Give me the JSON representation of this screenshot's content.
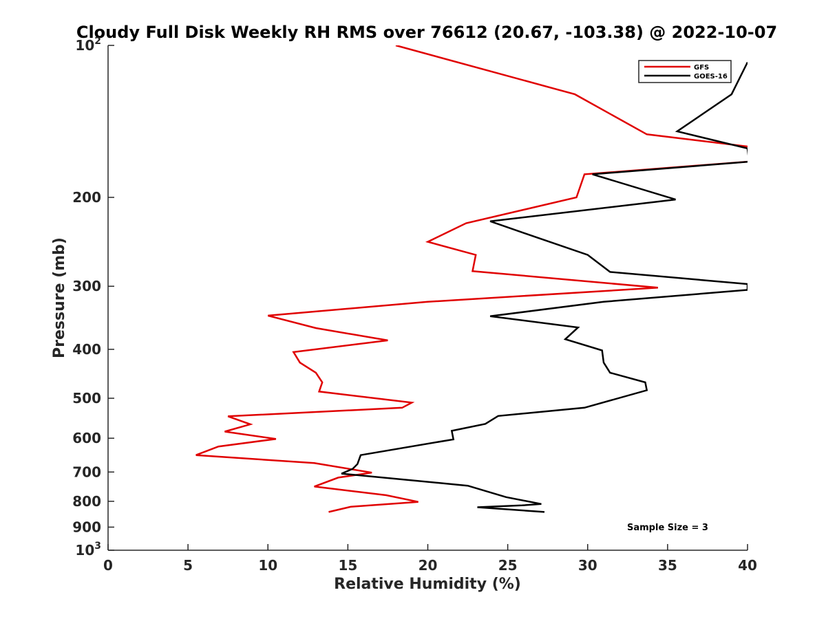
{
  "chart_data": {
    "type": "line",
    "title": "Cloudy Full Disk Weekly RH RMS over 76612 (20.67, -103.38) @ 2022-10-07",
    "xlabel": "Relative Humidity (%)",
    "ylabel": "Pressure (mb)",
    "xlim": [
      0,
      40
    ],
    "ylim": [
      100,
      1000
    ],
    "yscale": "log",
    "y_reversed": true,
    "xticks": [
      "0",
      "5",
      "10",
      "15",
      "20",
      "25",
      "30",
      "35",
      "40"
    ],
    "yticks": [
      {
        "value": 100,
        "label": "10",
        "sup": "2"
      },
      {
        "value": 200,
        "label": "200",
        "sup": ""
      },
      {
        "value": 300,
        "label": "300",
        "sup": ""
      },
      {
        "value": 400,
        "label": "400",
        "sup": ""
      },
      {
        "value": 500,
        "label": "500",
        "sup": ""
      },
      {
        "value": 600,
        "label": "600",
        "sup": ""
      },
      {
        "value": 700,
        "label": "700",
        "sup": ""
      },
      {
        "value": 800,
        "label": "800",
        "sup": ""
      },
      {
        "value": 900,
        "label": "900",
        "sup": ""
      },
      {
        "value": 1000,
        "label": "10",
        "sup": "3"
      }
    ],
    "legend_position": "top-right",
    "series": [
      {
        "name": "GFS",
        "color": "#e00000",
        "points": [
          [
            18.0,
            100
          ],
          [
            29.2,
            125
          ],
          [
            33.7,
            150
          ],
          [
            41.0,
            160
          ],
          [
            40.0,
            170
          ],
          [
            29.8,
            180
          ],
          [
            29.3,
            200
          ],
          [
            22.4,
            225
          ],
          [
            20.0,
            245
          ],
          [
            23.0,
            260
          ],
          [
            22.8,
            280
          ],
          [
            34.4,
            302
          ],
          [
            20.0,
            322
          ],
          [
            10.0,
            343
          ],
          [
            13.0,
            363
          ],
          [
            17.5,
            384
          ],
          [
            11.6,
            405
          ],
          [
            12.0,
            425
          ],
          [
            13.0,
            445
          ],
          [
            13.4,
            465
          ],
          [
            13.2,
            485
          ],
          [
            19.0,
            510
          ],
          [
            18.4,
            522
          ],
          [
            7.5,
            543
          ],
          [
            8.9,
            563
          ],
          [
            7.3,
            582
          ],
          [
            10.5,
            602
          ],
          [
            6.9,
            623
          ],
          [
            5.5,
            648
          ],
          [
            12.9,
            672
          ],
          [
            16.5,
            702
          ],
          [
            14.4,
            718
          ],
          [
            12.9,
            748
          ],
          [
            17.4,
            778
          ],
          [
            19.4,
            802
          ],
          [
            15.2,
            820
          ],
          [
            13.8,
            840
          ]
        ]
      },
      {
        "name": "GOES-16",
        "color": "#000000",
        "points": [
          [
            40.0,
            108
          ],
          [
            39.0,
            125
          ],
          [
            35.6,
            148
          ],
          [
            40.0,
            160
          ],
          [
            40.1,
            170
          ],
          [
            30.3,
            180
          ],
          [
            35.5,
            202
          ],
          [
            23.9,
            223
          ],
          [
            26.8,
            240
          ],
          [
            30.0,
            260
          ],
          [
            31.4,
            281
          ],
          [
            40.0,
            297
          ],
          [
            40.0,
            305
          ],
          [
            31.0,
            322
          ],
          [
            23.9,
            344
          ],
          [
            29.4,
            362
          ],
          [
            28.6,
            382
          ],
          [
            30.9,
            402
          ],
          [
            31.0,
            425
          ],
          [
            31.4,
            445
          ],
          [
            33.6,
            465
          ],
          [
            33.7,
            482
          ],
          [
            29.8,
            522
          ],
          [
            24.4,
            542
          ],
          [
            23.6,
            562
          ],
          [
            21.5,
            580
          ],
          [
            21.6,
            603
          ],
          [
            15.8,
            648
          ],
          [
            15.6,
            675
          ],
          [
            15.3,
            690
          ],
          [
            14.6,
            705
          ],
          [
            22.5,
            745
          ],
          [
            24.9,
            785
          ],
          [
            27.1,
            810
          ],
          [
            25.9,
            815
          ],
          [
            23.1,
            822
          ],
          [
            27.3,
            840
          ]
        ]
      }
    ],
    "annotations": [
      {
        "text": "Sample Size = 3"
      }
    ]
  }
}
